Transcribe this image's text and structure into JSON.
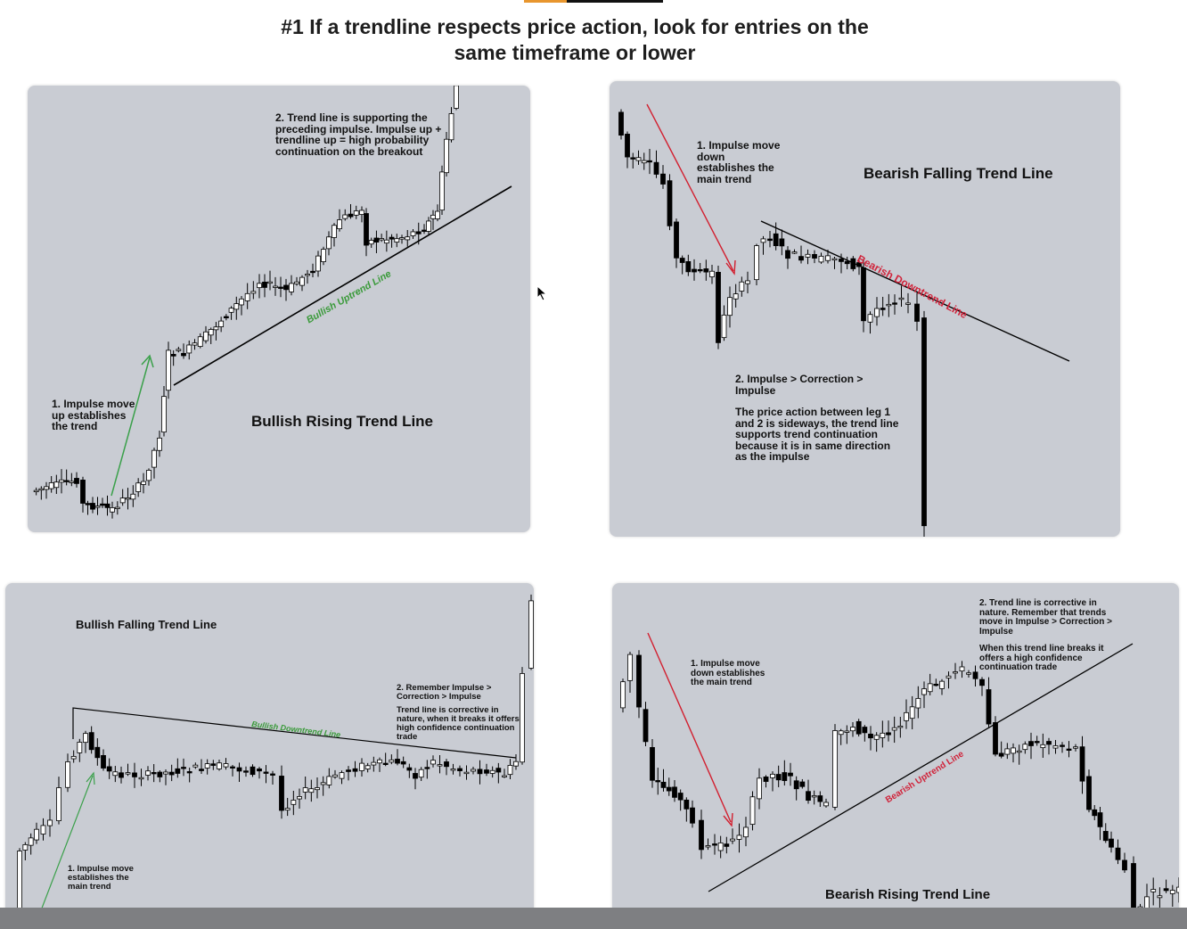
{
  "header": {
    "title_line1": "#1 If a trendline respects price action, look for entries on the",
    "title_line2": "same timeframe or lower"
  },
  "panels": {
    "top_left": {
      "title": "Bullish Rising Trend Line",
      "note_impulse": "1. Impulse move\nup establishes\nthe trend",
      "note_trend": "2. Trend line is supporting the\npreceding impulse. Impulse up +\ntrendline up = high probability\ncontinuation on the breakout",
      "line_label": "Bullish Uptrend Line"
    },
    "top_right": {
      "title": "Bearish Falling Trend Line",
      "note_impulse": "1. Impulse move\ndown\nestablishes the\nmain trend",
      "note_icr": "2. Impulse > Correction >\nImpulse",
      "note_sideways": "The price action between leg 1\nand 2 is sideways, the trend line\nsupports trend continuation\nbecause it is in same direction\nas the impulse",
      "line_label": "Bearish Downtrend Line"
    },
    "bottom_left": {
      "title": "Bullish Falling Trend Line",
      "note_impulse": "1. Impulse move\nestablishes the\nmain trend",
      "note_icr": "2. Remember Impulse >\nCorrection > Impulse",
      "note_corrective": "Trend line is corrective in\nnature, when it breaks it offers\nhigh confidence continuation\ntrade",
      "line_label": "Bullish Downtrend Line"
    },
    "bottom_right": {
      "title": "Bearish Rising Trend Line",
      "note_impulse": "1. Impulse move\ndown establishes\nthe main trend",
      "note_corrective": "2. Trend line is corrective in\nnature. Remember that trends\nmove in Impulse > Correction >\nImpulse",
      "note_break": "When this trend line breaks it\noffers a high confidence\ncontinuation trade",
      "line_label": "Bearish Uptrend Line"
    }
  },
  "colors": {
    "panel_bg": "#c9ccd3",
    "bull_label": "#3a9a3a",
    "bear_label": "#d0243b",
    "arrow_green": "#3aa04a",
    "arrow_red": "#d21f2f",
    "candle_down": "#000000",
    "candle_up": "#ffffff"
  },
  "icons": [
    "mouse-pointer-icon"
  ]
}
